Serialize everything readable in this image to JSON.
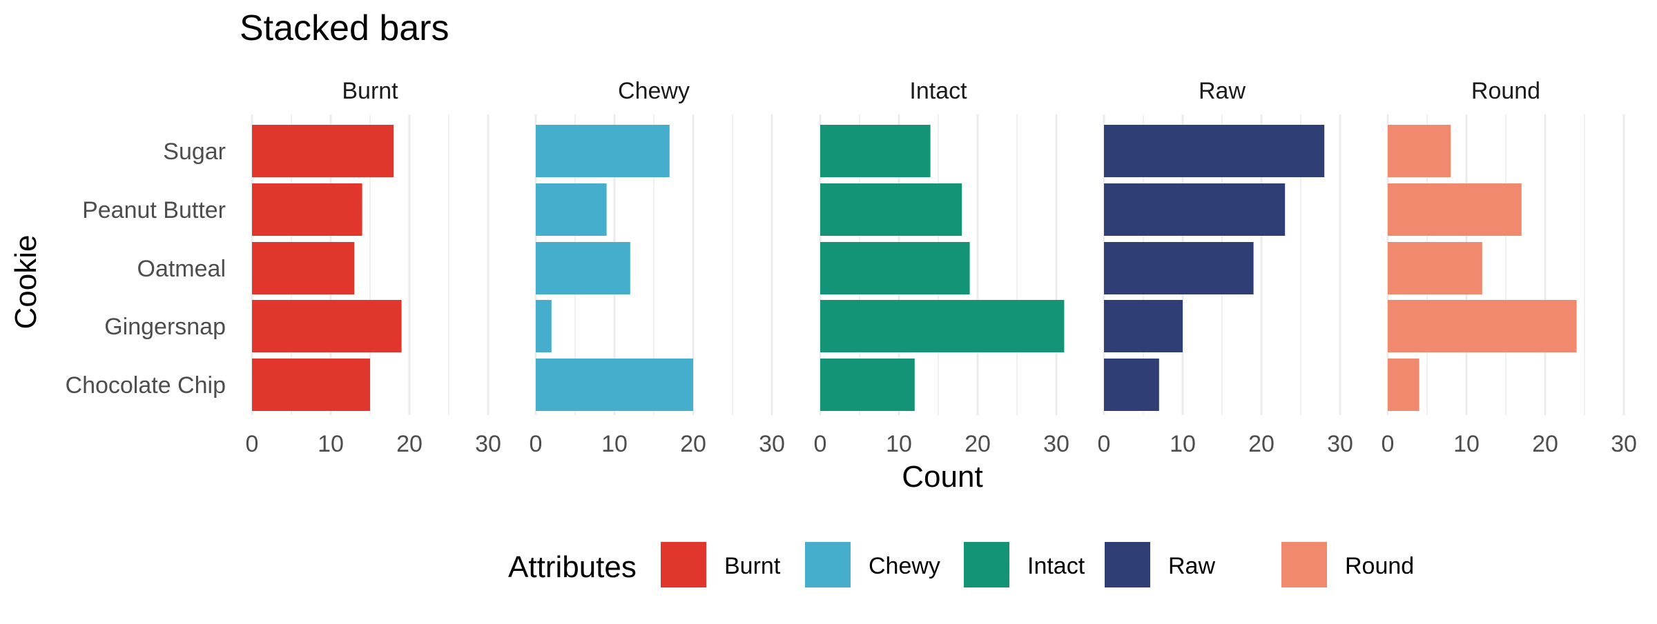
{
  "chart_data": {
    "type": "bar",
    "orientation": "horizontal",
    "stacked": false,
    "faceted": true,
    "title": "Stacked bars",
    "xlabel": "Count",
    "ylabel": "Cookie",
    "xlim": [
      0,
      30
    ],
    "x_ticks": [
      0,
      10,
      20,
      30
    ],
    "grid": true,
    "legend_position": "bottom",
    "legend_title": "Attributes",
    "categories": [
      "Chocolate Chip",
      "Gingersnap",
      "Oatmeal",
      "Peanut Butter",
      "Sugar"
    ],
    "series": [
      {
        "name": "Burnt",
        "color": "#E0362C",
        "values": [
          15,
          19,
          13,
          14,
          18
        ]
      },
      {
        "name": "Chewy",
        "color": "#45AECD",
        "values": [
          20,
          2,
          12,
          9,
          17
        ]
      },
      {
        "name": "Intact",
        "color": "#149476",
        "values": [
          12,
          31,
          19,
          18,
          14
        ]
      },
      {
        "name": "Raw",
        "color": "#2F3F75",
        "values": [
          7,
          10,
          19,
          23,
          28
        ]
      },
      {
        "name": "Round",
        "color": "#F0896E",
        "values": [
          4,
          24,
          12,
          17,
          8
        ]
      }
    ]
  }
}
